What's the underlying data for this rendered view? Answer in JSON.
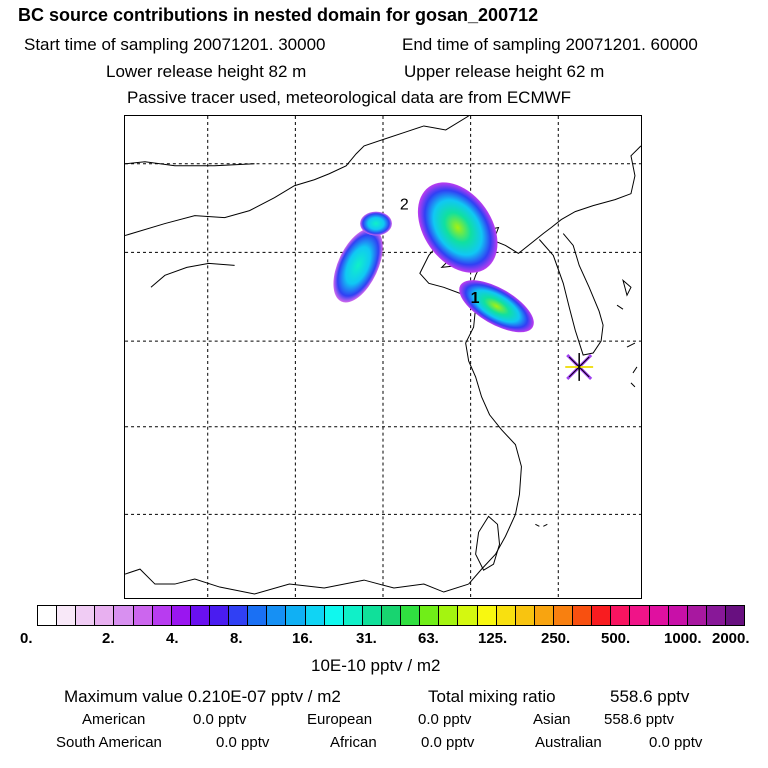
{
  "header": {
    "title": "BC  source contributions in nested domain for gosan_200712",
    "start_time": "Start time of sampling 20071201. 30000",
    "end_time": "End time of sampling 20071201. 60000",
    "lower_height": "Lower release height   82 m",
    "upper_height": "Upper release height   62 m",
    "tracer_note": "Passive tracer used, meteorological data are from ECMWF"
  },
  "map": {
    "source_labels": [
      "1",
      "2"
    ],
    "receptor_marker": "gosan-receptor-star"
  },
  "colorbar": {
    "colors": [
      "#ffffff",
      "#f8e8f8",
      "#f0ccf4",
      "#e8b0f0",
      "#d890f0",
      "#cc66ee",
      "#b83cf0",
      "#9a16f0",
      "#6a10f0",
      "#4a1cf0",
      "#3040f4",
      "#1a70f4",
      "#1690f4",
      "#10b0f4",
      "#10d4f4",
      "#10f8ee",
      "#10f0c8",
      "#10e09a",
      "#18d470",
      "#30e040",
      "#70ee18",
      "#a4f410",
      "#d4f810",
      "#f8f810",
      "#f8e010",
      "#f8c410",
      "#f8a410",
      "#f88010",
      "#f85010",
      "#f81c20",
      "#f81460",
      "#f01488",
      "#e010a0",
      "#c810a8",
      "#a818a0",
      "#881898",
      "#681080"
    ],
    "tick_labels": [
      "0.",
      "2.",
      "4.",
      "8.",
      "16.",
      "31.",
      "63.",
      "125.",
      "250.",
      "500.",
      "1000.",
      "2000."
    ],
    "unit_label": "10E-10 pptv / m2"
  },
  "stats": {
    "maximum": "Maximum value  0.210E-07 pptv / m2",
    "total_mixing": "Total mixing ratio",
    "total_mixing_value": "558.6 pptv",
    "american_label": "American",
    "american_value": "0.0 pptv",
    "european_label": "European",
    "european_value": "0.0 pptv",
    "asian_label": "Asian",
    "asian_value": "558.6 pptv",
    "south_american_label": "South American",
    "south_american_value": "0.0 pptv",
    "african_label": "African",
    "african_value": "0.0 pptv",
    "australian_label": "Australian",
    "australian_value": "0.0 pptv"
  }
}
